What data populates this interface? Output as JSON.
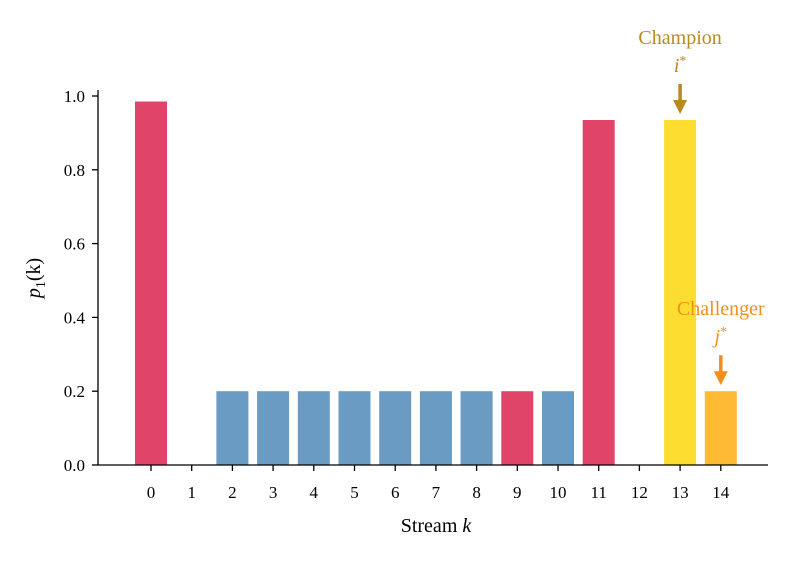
{
  "chart_data": {
    "type": "bar",
    "title": "",
    "xlabel": "Stream",
    "xlabel_var": "k",
    "ylabel_var": "p",
    "ylabel_sub": "1",
    "ylabel_arg": "(k)",
    "ylim": [
      0,
      1.0
    ],
    "yticks": [
      "0.0",
      "0.2",
      "0.4",
      "0.6",
      "0.8",
      "1.0"
    ],
    "categories": [
      "0",
      "1",
      "2",
      "3",
      "4",
      "5",
      "6",
      "7",
      "8",
      "9",
      "10",
      "11",
      "12",
      "13",
      "14"
    ],
    "values": [
      0.985,
      0,
      0.2,
      0.2,
      0.2,
      0.2,
      0.2,
      0.2,
      0.2,
      0.2,
      0.2,
      0.935,
      0,
      0.935,
      0.2
    ],
    "bar_colors": [
      "#e04468",
      "#e04468",
      "#6a9bc3",
      "#6a9bc3",
      "#6a9bc3",
      "#6a9bc3",
      "#6a9bc3",
      "#6a9bc3",
      "#6a9bc3",
      "#e04468",
      "#6a9bc3",
      "#e04468",
      "#e04468",
      "#fedd31",
      "#feb935"
    ],
    "annotations": [
      {
        "label": "Champion",
        "symbol": "i",
        "sup": "*",
        "target_index": 13,
        "color": "#b8891c"
      },
      {
        "label": "Challenger",
        "symbol": "j",
        "sup": "*",
        "target_index": 14,
        "color": "#f28f1c"
      }
    ]
  }
}
